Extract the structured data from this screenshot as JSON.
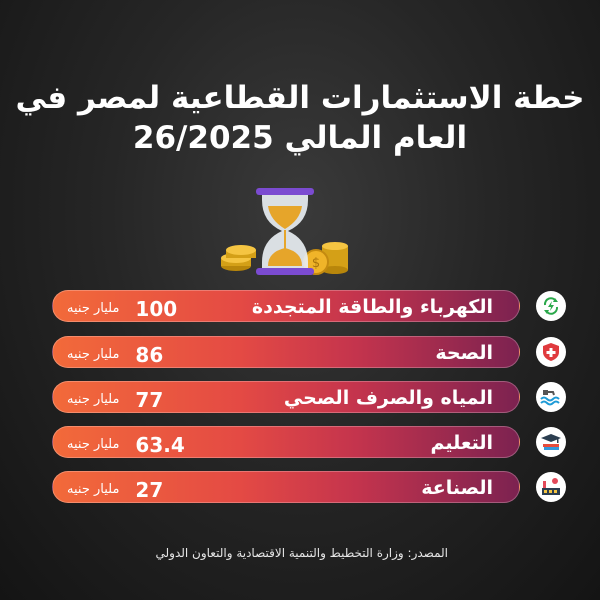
{
  "chart_data": {
    "type": "table",
    "title_line1": "خطة الاستثمارات القطاعية لمصر في",
    "title_line2": "العام المالي 26/2025",
    "unit": "مليار جنيه",
    "categories": [
      "الكهرباء والطاقة المتجددة",
      "الصحة",
      "المياه والصرف الصحي",
      "التعليم",
      "الصناعة"
    ],
    "values": [
      100,
      86,
      77,
      63.4,
      27
    ],
    "icons": [
      "energy-recycle-icon",
      "health-cross-icon",
      "water-waves-icon",
      "education-books-icon",
      "factory-icon"
    ],
    "source": "المصدر: وزارة التخطيط والتنمية الاقتصادية والتعاون الدولي"
  },
  "colors": {
    "bar_start": "#f26a3a",
    "bar_end": "#7c2250",
    "energy_icon": "#2aa84a",
    "health_icon": "#e03a3e",
    "water_icon": "#1e9bd7",
    "education_icon": "#2c3e50",
    "factory_icon": "#e34a5a"
  }
}
